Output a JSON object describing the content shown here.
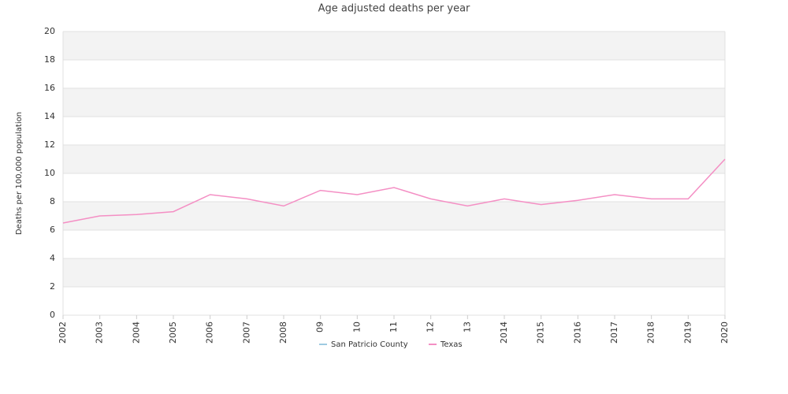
{
  "chart_data": {
    "type": "line",
    "title": "Age adjusted deaths per year",
    "y_label": "Deaths per 100,000 population",
    "categories": [
      "2002",
      "2003",
      "2004",
      "2005",
      "2006",
      "2007",
      "2008",
      "09",
      "10",
      "11",
      "12",
      "13",
      "2014",
      "2015",
      "2016",
      "2017",
      "2018",
      "2019",
      "2020"
    ],
    "series": [
      {
        "name": "San Patricio County",
        "color": "#9ecae1",
        "values": [
          null,
          null,
          null,
          null,
          null,
          null,
          null,
          null,
          null,
          null,
          null,
          null,
          null,
          null,
          null,
          null,
          null,
          null,
          null
        ]
      },
      {
        "name": "Texas",
        "color": "#f48fc4",
        "values": [
          6.5,
          7.0,
          7.1,
          7.3,
          8.5,
          8.2,
          7.7,
          8.8,
          8.5,
          9.0,
          8.2,
          7.7,
          8.2,
          7.8,
          8.1,
          8.5,
          8.2,
          8.2,
          11.0
        ]
      }
    ],
    "ylim": [
      0,
      20
    ],
    "yticks": [
      0,
      2,
      4,
      6,
      8,
      10,
      12,
      14,
      16,
      18,
      20
    ],
    "grid": true
  }
}
